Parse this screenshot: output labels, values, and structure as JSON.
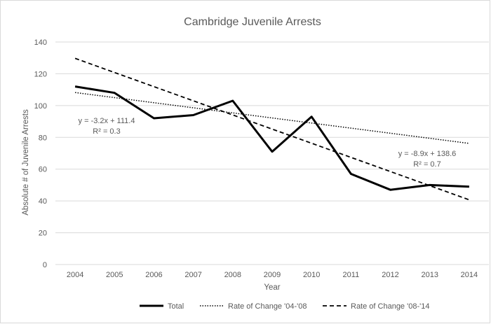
{
  "chart_data": {
    "type": "line",
    "title": "Cambridge Juvenile Arrests",
    "xlabel": "Year",
    "ylabel": "Absolute # of Juvenile Arrests",
    "ylim": [
      0,
      140
    ],
    "yticks": [
      0,
      20,
      40,
      60,
      80,
      100,
      120,
      140
    ],
    "grid": "horizontal",
    "legend_position": "bottom",
    "x": [
      2004,
      2005,
      2006,
      2007,
      2008,
      2009,
      2010,
      2011,
      2012,
      2013,
      2014
    ],
    "series": [
      {
        "name": "Total",
        "style": "solid",
        "color": "#000000",
        "values": [
          112,
          108,
          92,
          94,
          103,
          71,
          93,
          57,
          47,
          50,
          49
        ]
      },
      {
        "name": "Rate of Change '04-'08",
        "style": "dotted",
        "color": "#000000",
        "trend": {
          "slope": -3.2,
          "intercept": 111.4,
          "equation": "y = -3.2x + 111.4",
          "r2": "R² = 0.3"
        }
      },
      {
        "name": "Rate of Change '08-'14",
        "style": "dashed",
        "color": "#000000",
        "trend": {
          "slope": -8.9,
          "intercept": 138.6,
          "equation": "y = -8.9x + 138.6",
          "r2": "R² = 0.7"
        }
      }
    ]
  }
}
